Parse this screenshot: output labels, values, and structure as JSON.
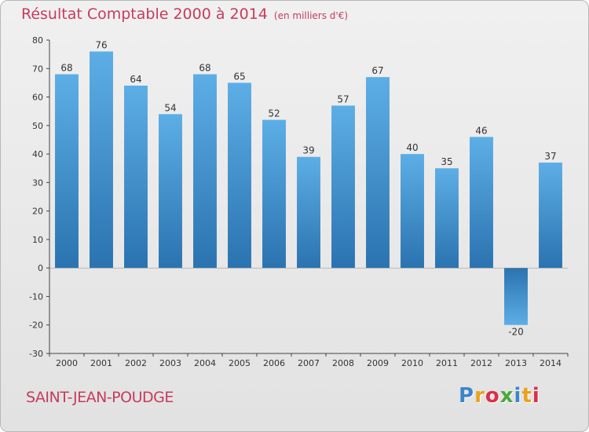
{
  "title": "Résultat Comptable 2000 à 2014",
  "subtitle": "(en milliers d'€)",
  "commune": "SAINT-JEAN-POUDGE",
  "brand": {
    "letters": [
      "P",
      "r",
      "o",
      "x",
      "i",
      "t",
      "i"
    ],
    "colors": [
      "#3a86c8",
      "#e8a21c",
      "#d9304a",
      "#4aa83a",
      "#3a86c8",
      "#e8a21c",
      "#d9304a"
    ]
  },
  "colors": {
    "bar_top": "#5daee6",
    "bar_bottom": "#2a73b0",
    "title": "#c73b5c"
  },
  "chart_data": {
    "type": "bar",
    "categories": [
      "2000",
      "2001",
      "2002",
      "2003",
      "2004",
      "2005",
      "2006",
      "2007",
      "2008",
      "2009",
      "2010",
      "2011",
      "2012",
      "2013",
      "2014"
    ],
    "values": [
      68,
      76,
      64,
      54,
      68,
      65,
      52,
      39,
      57,
      67,
      40,
      35,
      46,
      -20,
      37
    ],
    "ylim": [
      -30,
      80
    ],
    "yticks": [
      -30,
      -20,
      -10,
      0,
      10,
      20,
      30,
      40,
      50,
      60,
      70,
      80
    ],
    "grid": false,
    "legend": "none"
  }
}
